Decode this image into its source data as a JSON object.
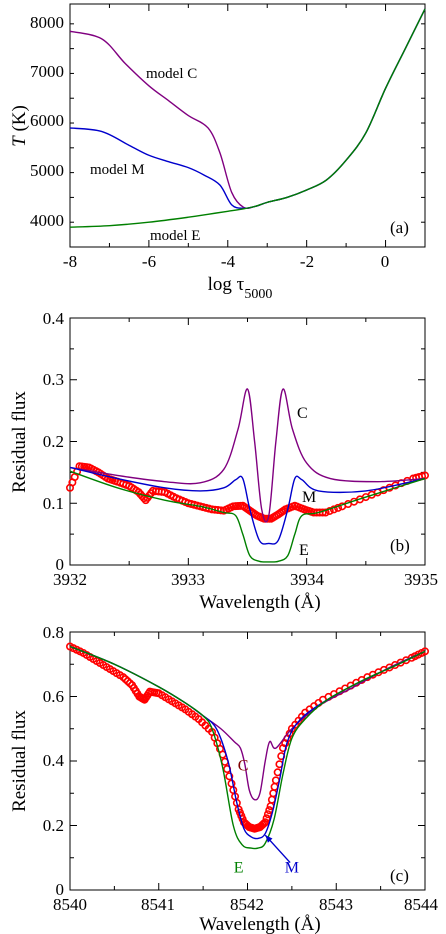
{
  "chart_data": [
    {
      "type": "line",
      "panel": "(a)",
      "xlabel": "log τ5000",
      "ylabel": "T (K)",
      "xlim": [
        -8,
        1
      ],
      "ylim": [
        3600,
        8500
      ],
      "xticks": [
        -8,
        -6,
        -4,
        -2,
        0
      ],
      "yticks": [
        4000,
        5000,
        6000,
        7000,
        8000
      ],
      "grid": false,
      "series": [
        {
          "name": "model C",
          "color": "#800080",
          "x": [
            -8,
            -7.2,
            -6.6,
            -6,
            -5.5,
            -5,
            -4.5,
            -4.2,
            -3.9,
            -3.6,
            -3.3,
            -3,
            -2.5,
            -2,
            -1.5,
            -1,
            -0.5,
            0,
            0.5,
            1
          ],
          "y": [
            7950,
            7800,
            7300,
            6850,
            6550,
            6250,
            6000,
            5500,
            4700,
            4400,
            4420,
            4500,
            4600,
            4750,
            4950,
            5350,
            5900,
            6800,
            7600,
            8400
          ]
        },
        {
          "name": "model M",
          "color": "#0000cc",
          "x": [
            -8,
            -7.2,
            -6.5,
            -6,
            -5.5,
            -5,
            -4.6,
            -4.2,
            -3.9,
            -3.6,
            -3.3,
            -3,
            -2.5,
            -2,
            -1.5,
            -1,
            -0.5,
            0,
            0.5,
            1
          ],
          "y": [
            6000,
            5930,
            5650,
            5450,
            5320,
            5200,
            5050,
            4850,
            4450,
            4380,
            4420,
            4500,
            4600,
            4750,
            4950,
            5350,
            5900,
            6800,
            7600,
            8400
          ]
        },
        {
          "name": "model E",
          "color": "#008000",
          "x": [
            -8,
            -7,
            -6,
            -5,
            -4.5,
            -4,
            -3.6,
            -3.3,
            -3,
            -2.5,
            -2,
            -1.5,
            -1,
            -0.5,
            0,
            0.5,
            1
          ],
          "y": [
            4000,
            4030,
            4100,
            4200,
            4260,
            4320,
            4370,
            4420,
            4500,
            4600,
            4750,
            4950,
            5350,
            5900,
            6800,
            7600,
            8400
          ]
        }
      ]
    },
    {
      "type": "line",
      "panel": "(b)",
      "xlabel": "Wavelength (Å)",
      "ylabel": "Residual flux",
      "xlim": [
        3932,
        3935
      ],
      "ylim": [
        0,
        0.4
      ],
      "xticks": [
        3932,
        3933,
        3934,
        3935
      ],
      "yticks": [
        0,
        0.1,
        0.2,
        0.3,
        0.4
      ],
      "grid": false,
      "series": [
        {
          "name": "C",
          "color": "#800080",
          "x": [
            3932,
            3932.4,
            3932.8,
            3933.1,
            3933.3,
            3933.42,
            3933.5,
            3933.56,
            3933.62,
            3933.68,
            3933.74,
            3933.8,
            3933.88,
            3934.0,
            3934.2,
            3934.6,
            3935
          ],
          "y": [
            0.158,
            0.145,
            0.135,
            0.133,
            0.155,
            0.22,
            0.285,
            0.2,
            0.09,
            0.08,
            0.2,
            0.285,
            0.22,
            0.165,
            0.14,
            0.135,
            0.14
          ]
        },
        {
          "name": "M",
          "color": "#0000cc",
          "x": [
            3932,
            3932.4,
            3932.8,
            3933.1,
            3933.3,
            3933.4,
            3933.46,
            3933.52,
            3933.6,
            3933.68,
            3933.76,
            3933.84,
            3933.9,
            3933.96,
            3934.1,
            3934.5,
            3935
          ],
          "y": [
            0.158,
            0.14,
            0.125,
            0.12,
            0.125,
            0.138,
            0.14,
            0.09,
            0.04,
            0.035,
            0.04,
            0.09,
            0.14,
            0.138,
            0.12,
            0.12,
            0.14
          ]
        },
        {
          "name": "E",
          "color": "#008000",
          "x": [
            3932,
            3932.4,
            3932.8,
            3933.1,
            3933.3,
            3933.4,
            3933.46,
            3933.52,
            3933.6,
            3933.68,
            3933.76,
            3933.84,
            3933.9,
            3933.96,
            3934.1,
            3934.5,
            3935
          ],
          "y": [
            0.152,
            0.125,
            0.105,
            0.095,
            0.085,
            0.08,
            0.05,
            0.015,
            0.006,
            0.005,
            0.006,
            0.015,
            0.05,
            0.08,
            0.085,
            0.11,
            0.14
          ]
        },
        {
          "name": "observed",
          "color": "#ff0000",
          "marker": "circle",
          "x": [
            3932.0,
            3932.08,
            3932.16,
            3932.24,
            3932.32,
            3932.4,
            3932.5,
            3932.58,
            3932.64,
            3932.7,
            3932.8,
            3932.9,
            3933.0,
            3933.1,
            3933.2,
            3933.3,
            3933.38,
            3933.46,
            3933.52,
            3933.58,
            3933.64,
            3933.7,
            3933.76,
            3933.82,
            3933.9,
            3933.98,
            3934.06,
            3934.16,
            3934.3,
            3934.5,
            3934.7,
            3934.9,
            3935.0
          ],
          "y": [
            0.125,
            0.16,
            0.158,
            0.15,
            0.14,
            0.135,
            0.128,
            0.118,
            0.105,
            0.12,
            0.118,
            0.108,
            0.1,
            0.095,
            0.09,
            0.088,
            0.095,
            0.096,
            0.088,
            0.08,
            0.075,
            0.075,
            0.082,
            0.09,
            0.096,
            0.09,
            0.085,
            0.085,
            0.095,
            0.11,
            0.125,
            0.14,
            0.145
          ]
        }
      ]
    },
    {
      "type": "line",
      "panel": "(c)",
      "xlabel": "Wavelength (Å)",
      "ylabel": "Residual flux",
      "xlim": [
        8540,
        8544
      ],
      "ylim": [
        0,
        0.8
      ],
      "xticks": [
        8540,
        8541,
        8542,
        8543,
        8544
      ],
      "yticks": [
        0,
        0.2,
        0.4,
        0.6,
        0.8
      ],
      "grid": false,
      "series": [
        {
          "name": "C",
          "color": "#800080",
          "x": [
            8540,
            8540.5,
            8541,
            8541.3,
            8541.5,
            8541.7,
            8541.85,
            8541.92,
            8541.97,
            8542.02,
            8542.08,
            8542.14,
            8542.2,
            8542.25,
            8542.32,
            8542.5,
            8542.8,
            8543.2,
            8543.6,
            8544
          ],
          "y": [
            0.755,
            0.7,
            0.63,
            0.58,
            0.54,
            0.5,
            0.46,
            0.44,
            0.39,
            0.31,
            0.28,
            0.3,
            0.4,
            0.46,
            0.44,
            0.5,
            0.57,
            0.63,
            0.69,
            0.74
          ]
        },
        {
          "name": "M",
          "color": "#0000cc",
          "x": [
            8540,
            8540.5,
            8541,
            8541.3,
            8541.5,
            8541.65,
            8541.78,
            8541.88,
            8541.96,
            8542.04,
            8542.12,
            8542.2,
            8542.28,
            8542.36,
            8542.45,
            8542.6,
            8542.9,
            8543.3,
            8543.7,
            8544
          ],
          "y": [
            0.755,
            0.7,
            0.63,
            0.58,
            0.54,
            0.5,
            0.4,
            0.27,
            0.19,
            0.165,
            0.16,
            0.175,
            0.24,
            0.34,
            0.46,
            0.53,
            0.59,
            0.65,
            0.7,
            0.74
          ]
        },
        {
          "name": "E",
          "color": "#008000",
          "x": [
            8540,
            8540.5,
            8541,
            8541.3,
            8541.5,
            8541.6,
            8541.72,
            8541.84,
            8541.94,
            8542.04,
            8542.12,
            8542.2,
            8542.3,
            8542.4,
            8542.5,
            8542.65,
            8542.9,
            8543.3,
            8543.7,
            8544
          ],
          "y": [
            0.755,
            0.7,
            0.63,
            0.58,
            0.54,
            0.5,
            0.38,
            0.2,
            0.14,
            0.13,
            0.13,
            0.145,
            0.22,
            0.36,
            0.47,
            0.53,
            0.59,
            0.65,
            0.7,
            0.74
          ]
        },
        {
          "name": "observed",
          "color": "#ff0000",
          "marker": "circle",
          "x": [
            8540.0,
            8540.15,
            8540.3,
            8540.45,
            8540.6,
            8540.7,
            8540.78,
            8540.84,
            8540.9,
            8541.0,
            8541.15,
            8541.3,
            8541.45,
            8541.6,
            8541.72,
            8541.82,
            8541.9,
            8541.96,
            8542.02,
            8542.08,
            8542.14,
            8542.2,
            8542.26,
            8542.32,
            8542.4,
            8542.5,
            8542.65,
            8542.85,
            8543.1,
            8543.35,
            8543.6,
            8543.85,
            8544.0
          ],
          "y": [
            0.755,
            0.735,
            0.71,
            0.685,
            0.66,
            0.635,
            0.6,
            0.59,
            0.615,
            0.61,
            0.585,
            0.56,
            0.53,
            0.49,
            0.42,
            0.33,
            0.25,
            0.21,
            0.195,
            0.19,
            0.195,
            0.21,
            0.26,
            0.34,
            0.44,
            0.5,
            0.55,
            0.59,
            0.625,
            0.66,
            0.69,
            0.72,
            0.74
          ]
        }
      ],
      "annotations": [
        {
          "text": "C",
          "x": 8541.95,
          "y": 0.37,
          "color": "#800000"
        },
        {
          "text": "E",
          "x": 8541.9,
          "y": 0.055,
          "color": "#008000"
        },
        {
          "text": "M",
          "x": 8542.5,
          "y": 0.055,
          "color": "#0000cc"
        }
      ]
    }
  ]
}
